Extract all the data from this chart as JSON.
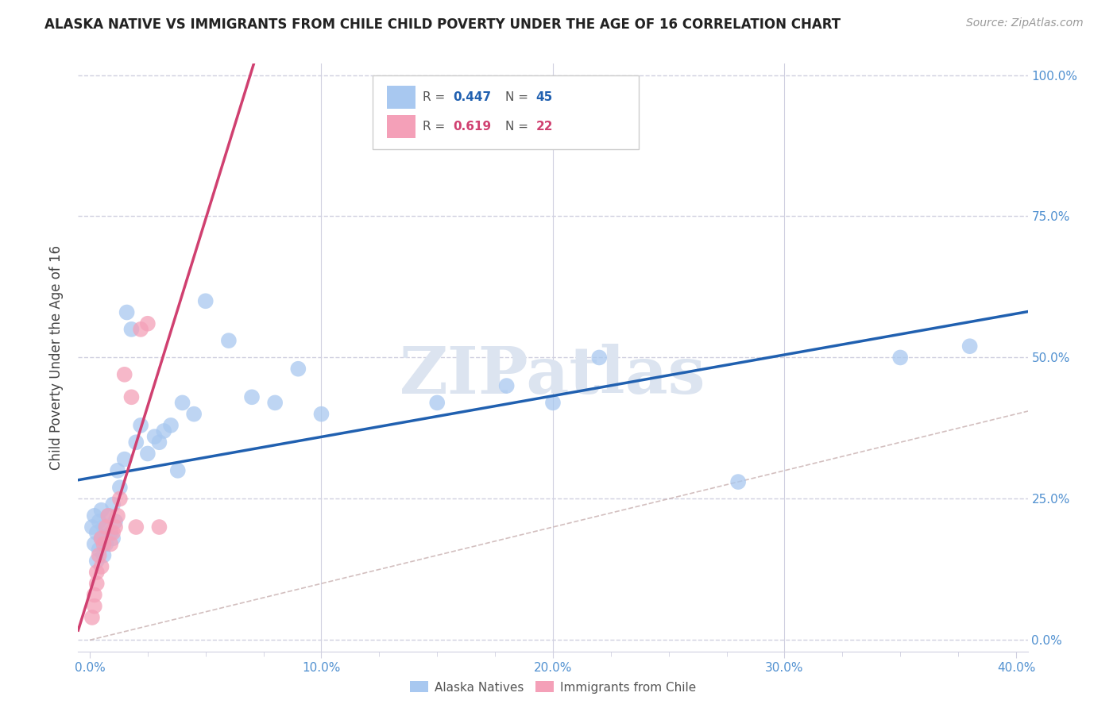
{
  "title": "ALASKA NATIVE VS IMMIGRANTS FROM CHILE CHILD POVERTY UNDER THE AGE OF 16 CORRELATION CHART",
  "source": "Source: ZipAtlas.com",
  "ylabel": "Child Poverty Under the Age of 16",
  "xlabel_ticks": [
    "0.0%",
    "",
    "",
    "",
    "10.0%",
    "",
    "",
    "",
    "20.0%",
    "",
    "",
    "",
    "30.0%",
    "",
    "",
    "",
    "40.0%"
  ],
  "xlabel_vals": [
    0.0,
    0.025,
    0.05,
    0.075,
    0.1,
    0.125,
    0.15,
    0.175,
    0.2,
    0.225,
    0.25,
    0.275,
    0.3,
    0.325,
    0.35,
    0.375,
    0.4
  ],
  "xlabel_major_ticks": [
    0.0,
    0.1,
    0.2,
    0.3,
    0.4
  ],
  "xlabel_major_labels": [
    "0.0%",
    "10.0%",
    "20.0%",
    "30.0%",
    "40.0%"
  ],
  "ylabel_ticks": [
    0.0,
    0.25,
    0.5,
    0.75,
    1.0
  ],
  "ylabel_labels": [
    "0.0%",
    "25.0%",
    "50.0%",
    "75.0%",
    "100.0%"
  ],
  "xlim": [
    -0.005,
    0.405
  ],
  "ylim": [
    -0.02,
    1.02
  ],
  "alaska_x": [
    0.001,
    0.002,
    0.002,
    0.003,
    0.003,
    0.004,
    0.004,
    0.005,
    0.005,
    0.006,
    0.006,
    0.007,
    0.008,
    0.009,
    0.01,
    0.01,
    0.011,
    0.012,
    0.013,
    0.015,
    0.016,
    0.018,
    0.02,
    0.022,
    0.025,
    0.028,
    0.03,
    0.032,
    0.035,
    0.038,
    0.04,
    0.045,
    0.05,
    0.06,
    0.07,
    0.08,
    0.09,
    0.1,
    0.15,
    0.18,
    0.2,
    0.22,
    0.28,
    0.35,
    0.38
  ],
  "alaska_y": [
    0.2,
    0.17,
    0.22,
    0.14,
    0.19,
    0.16,
    0.21,
    0.18,
    0.23,
    0.15,
    0.2,
    0.17,
    0.22,
    0.19,
    0.24,
    0.18,
    0.21,
    0.3,
    0.27,
    0.32,
    0.58,
    0.55,
    0.35,
    0.38,
    0.33,
    0.36,
    0.35,
    0.37,
    0.38,
    0.3,
    0.42,
    0.4,
    0.6,
    0.53,
    0.43,
    0.42,
    0.48,
    0.4,
    0.42,
    0.45,
    0.42,
    0.5,
    0.28,
    0.5,
    0.52
  ],
  "chile_x": [
    0.001,
    0.002,
    0.002,
    0.003,
    0.003,
    0.004,
    0.005,
    0.005,
    0.006,
    0.007,
    0.008,
    0.009,
    0.01,
    0.011,
    0.012,
    0.013,
    0.015,
    0.018,
    0.02,
    0.022,
    0.025,
    0.03
  ],
  "chile_y": [
    0.04,
    0.06,
    0.08,
    0.1,
    0.12,
    0.15,
    0.13,
    0.18,
    0.17,
    0.2,
    0.22,
    0.17,
    0.19,
    0.2,
    0.22,
    0.25,
    0.47,
    0.43,
    0.2,
    0.55,
    0.56,
    0.2
  ],
  "alaska_color": "#a8c8f0",
  "chile_color": "#f4a0b8",
  "alaska_line_color": "#2060b0",
  "chile_line_color": "#d04070",
  "diagonal_color": "#c8b0b0",
  "background_color": "#ffffff",
  "grid_color": "#d0d0e0",
  "tick_color": "#5090d0",
  "watermark": "ZIPatlas",
  "watermark_color": "#dce4f0",
  "alaska_R": 0.447,
  "alaska_N": 45,
  "chile_R": 0.619,
  "chile_N": 22,
  "legend_label_alaska": "Alaska Natives",
  "legend_label_chile": "Immigrants from Chile"
}
